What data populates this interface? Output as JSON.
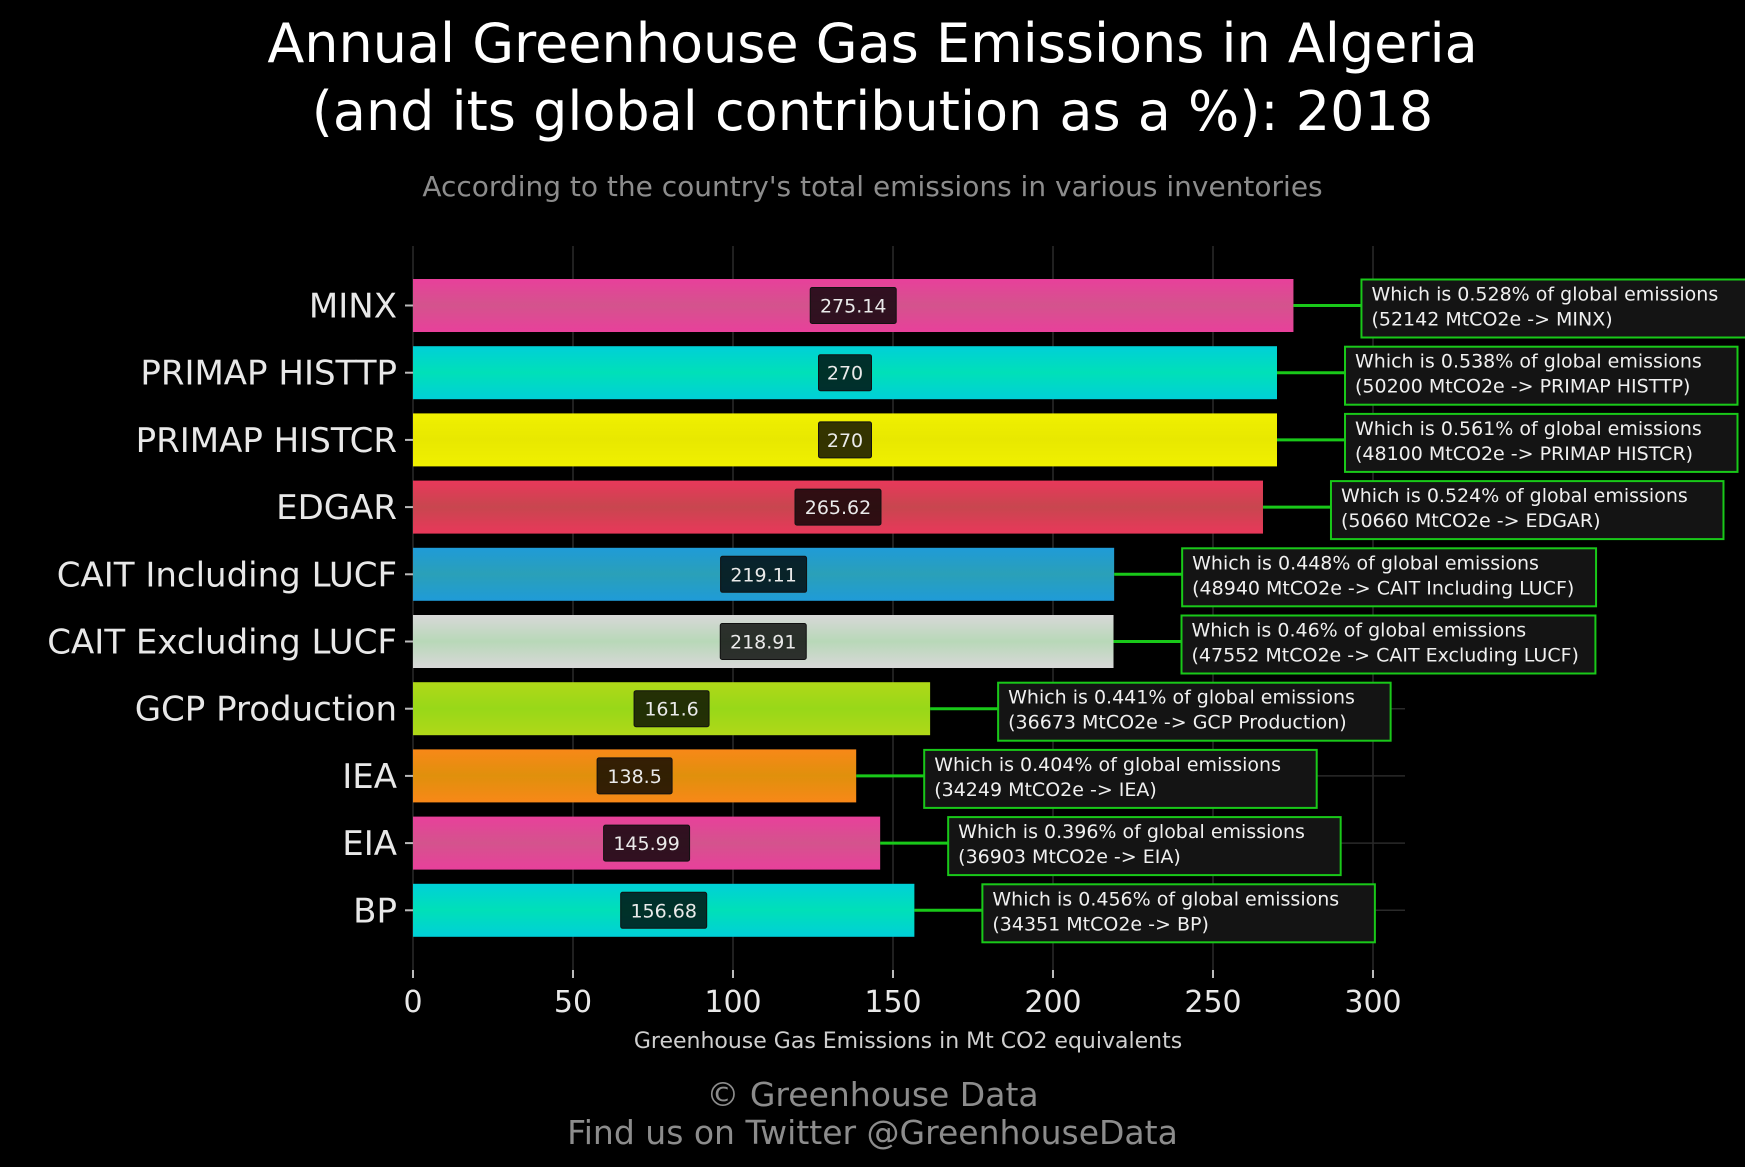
{
  "header": {
    "title_line1": "Annual Greenhouse Gas Emissions in Algeria",
    "title_line2": "(and its global contribution as a %): 2018",
    "subtitle": "According to the country's total emissions in various inventories"
  },
  "footer": {
    "copyright": "© Greenhouse Data",
    "twitter": "Find us on Twitter @GreenhouseData"
  },
  "colors": {
    "background": "#000000",
    "annotation_border": "#19c819",
    "annotation_bg": "#141414",
    "grid": "#2a2a2a"
  },
  "chart_data": {
    "type": "bar",
    "orientation": "horizontal",
    "xlabel": "Greenhouse Gas Emissions in Mt CO2 equivalents",
    "xlim": [
      0,
      310
    ],
    "xticks": [
      0,
      50,
      100,
      150,
      200,
      250,
      300
    ],
    "grid": true,
    "categories": [
      "MINX",
      "PRIMAP HISTTP",
      "PRIMAP HISTCR",
      "EDGAR",
      "CAIT Including LUCF",
      "CAIT Excluding LUCF",
      "GCP Production",
      "IEA",
      "EIA",
      "BP"
    ],
    "values": [
      275.14,
      270,
      270,
      265.62,
      219.11,
      218.91,
      161.6,
      138.5,
      145.99,
      156.68
    ],
    "value_labels": [
      "275.14",
      "270",
      "270",
      "265.62",
      "219.11",
      "218.91",
      "161.6",
      "138.5",
      "145.99",
      "156.68"
    ],
    "bar_colors": [
      [
        "#e8409b",
        "#d4538d"
      ],
      [
        "#00d0d8",
        "#00e0b8"
      ],
      [
        "#f0f000",
        "#e8e800"
      ],
      [
        "#e8385a",
        "#c8464f"
      ],
      [
        "#1f9bd8",
        "#2aa0b8"
      ],
      [
        "#d8d8d8",
        "#b8d8b8"
      ],
      [
        "#b0d818",
        "#98d818"
      ],
      [
        "#f88818",
        "#e0900c"
      ],
      [
        "#e8409b",
        "#d4538d"
      ],
      [
        "#00d0d8",
        "#00e0b8"
      ]
    ],
    "annotations": [
      {
        "line1": "Which is 0.528% of global emissions",
        "line2": "(52142 MtCO2e -> MINX)"
      },
      {
        "line1": "Which is 0.538% of global emissions",
        "line2": "(50200 MtCO2e -> PRIMAP HISTTP)"
      },
      {
        "line1": "Which is 0.561% of global emissions",
        "line2": "(48100 MtCO2e -> PRIMAP HISTCR)"
      },
      {
        "line1": "Which is 0.524% of global emissions",
        "line2": "(50660 MtCO2e -> EDGAR)"
      },
      {
        "line1": "Which is 0.448% of global emissions",
        "line2": "(48940 MtCO2e -> CAIT Including LUCF)"
      },
      {
        "line1": "Which is 0.46% of global emissions",
        "line2": "(47552 MtCO2e -> CAIT Excluding LUCF)"
      },
      {
        "line1": "Which is 0.441% of global emissions",
        "line2": "(36673 MtCO2e -> GCP Production)"
      },
      {
        "line1": "Which is 0.404% of global emissions",
        "line2": "(34249 MtCO2e -> IEA)"
      },
      {
        "line1": "Which is 0.396% of global emissions",
        "line2": "(36903 MtCO2e -> EIA)"
      },
      {
        "line1": "Which is 0.456% of global emissions",
        "line2": "(34351 MtCO2e -> BP)"
      }
    ]
  }
}
